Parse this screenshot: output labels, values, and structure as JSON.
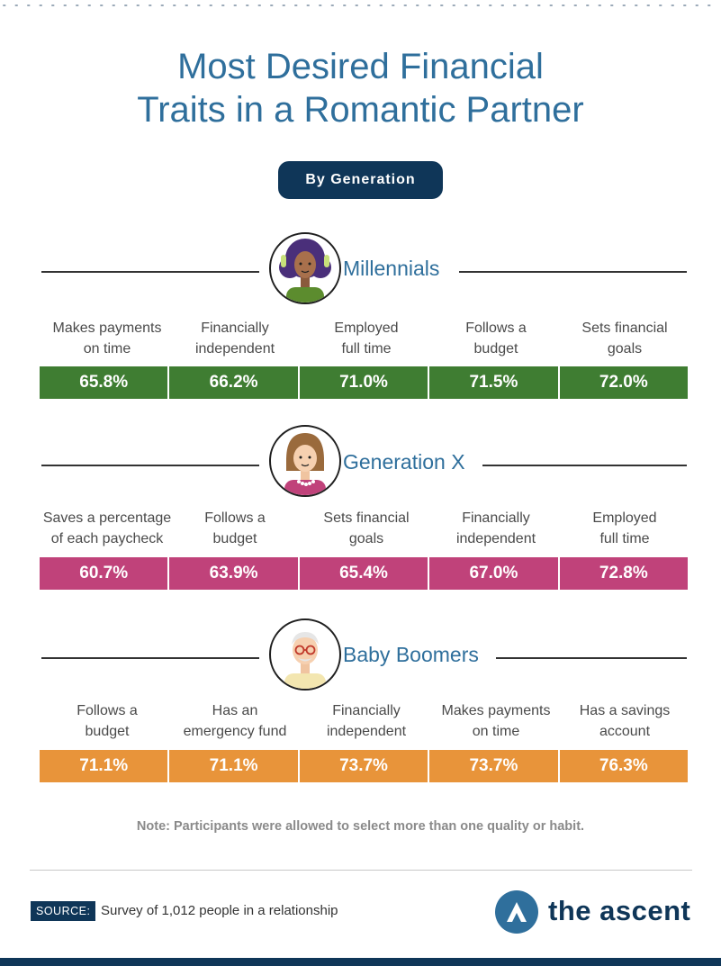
{
  "title_line1": "Most Desired Financial",
  "title_line2": "Traits in a Romantic Partner",
  "subtitle": "By Generation",
  "note": "Note: Participants were allowed to select more than one quality or habit.",
  "source_label": "SOURCE:",
  "source_text": "Survey of 1,012 people in a relationship",
  "brand": "the ascent",
  "colors": {
    "title": "#2f6f9c",
    "pill": "#0f3658",
    "millennials": "#3f7d32",
    "genx": "#c0427a",
    "boomers": "#e8943a"
  },
  "chart_data": [
    {
      "type": "table",
      "series_name": "Millennials",
      "categories": [
        "Makes payments\non time",
        "Financially\nindependent",
        "Employed\nfull time",
        "Follows a\nbudget",
        "Sets financial\ngoals"
      ],
      "value_labels": [
        "65.8%",
        "66.2%",
        "71.0%",
        "71.5%",
        "72.0%"
      ],
      "values": [
        65.8,
        66.2,
        71.0,
        71.5,
        72.0
      ],
      "color": "#3f7d32"
    },
    {
      "type": "table",
      "series_name": "Generation X",
      "categories": [
        "Saves a percentage\nof each paycheck",
        "Follows a\nbudget",
        "Sets financial\ngoals",
        "Financially\nindependent",
        "Employed\nfull time"
      ],
      "value_labels": [
        "60.7%",
        "63.9%",
        "65.4%",
        "67.0%",
        "72.8%"
      ],
      "values": [
        60.7,
        63.9,
        65.4,
        67.0,
        72.8
      ],
      "color": "#c0427a"
    },
    {
      "type": "table",
      "series_name": "Baby Boomers",
      "categories": [
        "Follows a\nbudget",
        "Has an\nemergency fund",
        "Financially\nindependent",
        "Makes payments\non time",
        "Has a savings\naccount"
      ],
      "value_labels": [
        "71.1%",
        "71.1%",
        "73.7%",
        "73.7%",
        "76.3%"
      ],
      "values": [
        71.1,
        71.1,
        73.7,
        73.7,
        76.3
      ],
      "color": "#e8943a"
    }
  ]
}
